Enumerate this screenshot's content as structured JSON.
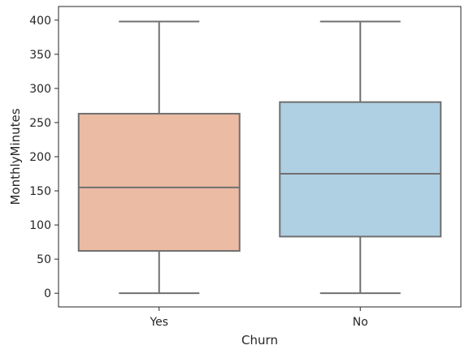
{
  "chart_data": {
    "type": "box",
    "title": "",
    "xlabel": "Churn",
    "ylabel": "MonthlyMinutes",
    "categories": [
      "Yes",
      "No"
    ],
    "ylim": [
      -20,
      420
    ],
    "yticks": [
      0,
      50,
      100,
      150,
      200,
      250,
      300,
      350,
      400
    ],
    "grid": false,
    "boxes": [
      {
        "category": "Yes",
        "whisker_low": 0,
        "q1": 62,
        "median": 155,
        "q3": 263,
        "whisker_high": 398,
        "color": "#EBBBA4"
      },
      {
        "category": "No",
        "whisker_low": 0,
        "q1": 83,
        "median": 175,
        "q3": 280,
        "whisker_high": 398,
        "color": "#AFCFE2"
      }
    ],
    "line_color": "#707070"
  }
}
